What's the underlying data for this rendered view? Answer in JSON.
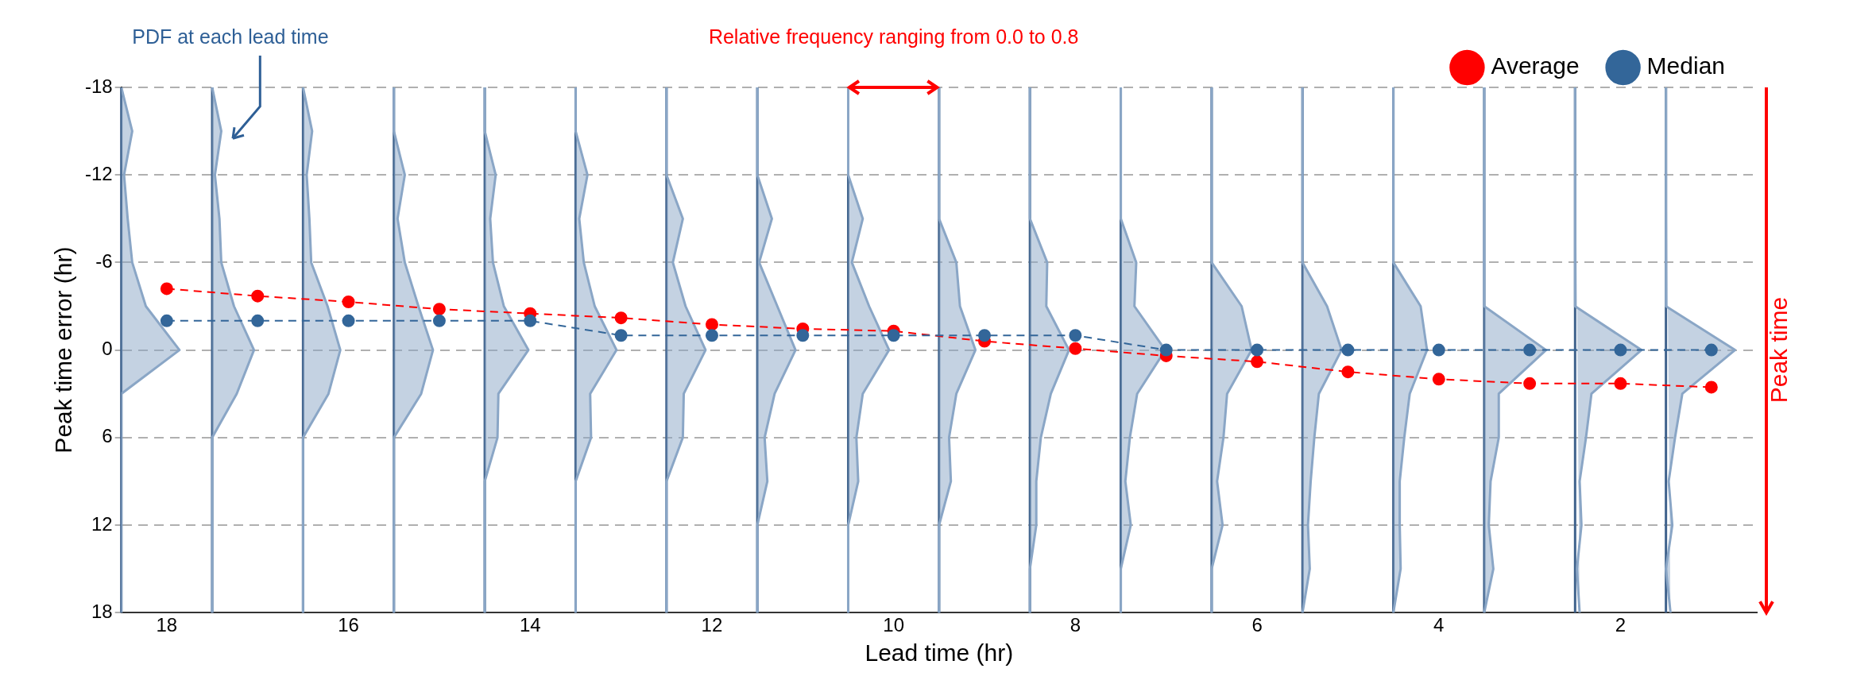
{
  "chart_data": {
    "type": "line",
    "xlabel": "Lead time (hr)",
    "ylabel": "Peak time error (hr)",
    "xlim": [
      18.5,
      0.5
    ],
    "xticks": [
      18,
      16,
      14,
      12,
      10,
      8,
      6,
      4,
      2
    ],
    "ylim": [
      18,
      -18
    ],
    "yticks": [
      -18,
      -12,
      -6,
      0,
      6,
      12,
      18
    ],
    "grid": "y",
    "legend": "top right",
    "line_style": "dashed",
    "annotations": [
      "PDF at each lead time",
      "Relative frequency ranging from 0.0 to 0.8",
      "Peak time"
    ],
    "ref_lines": [
      {
        "axis": "x",
        "value": 18.5,
        "color": "#3f628c"
      },
      {
        "axis": "x",
        "value": 17.5,
        "color": "#3f628c"
      },
      {
        "axis": "x",
        "value": 16.5,
        "color": "#3f628c"
      },
      {
        "axis": "x",
        "value": 15.5,
        "color": "#3f628c"
      },
      {
        "axis": "x",
        "value": 14.5,
        "color": "#3f628c"
      },
      {
        "axis": "x",
        "value": 13.5,
        "color": "#3f628c"
      },
      {
        "axis": "x",
        "value": 12.5,
        "color": "#3f628c"
      },
      {
        "axis": "x",
        "value": 11.5,
        "color": "#3f628c"
      },
      {
        "axis": "x",
        "value": 10.5,
        "color": "#3f628c"
      },
      {
        "axis": "x",
        "value": 9.5,
        "color": "#3f628c"
      },
      {
        "axis": "x",
        "value": 8.5,
        "color": "#3f628c"
      },
      {
        "axis": "x",
        "value": 7.5,
        "color": "#3f628c"
      },
      {
        "axis": "x",
        "value": 6.5,
        "color": "#3f628c"
      },
      {
        "axis": "x",
        "value": 5.5,
        "color": "#3f628c"
      },
      {
        "axis": "x",
        "value": 4.5,
        "color": "#3f628c"
      },
      {
        "axis": "x",
        "value": 3.5,
        "color": "#3f628c"
      },
      {
        "axis": "x",
        "value": 2.5,
        "color": "#3f628c"
      },
      {
        "axis": "x",
        "value": 1.5,
        "color": "#3f628c"
      }
    ],
    "series": [
      {
        "type": "area",
        "color": "#8aa6c6",
        "x": [
          18.5,
          18.38,
          18.47,
          18.43,
          18.38,
          18.23,
          17.86,
          18.5,
          18.5,
          18.5,
          18.5,
          18.5,
          18.5
        ],
        "values": [
          -18,
          -15,
          -12,
          -9,
          -6,
          -3,
          0,
          3,
          6,
          9,
          12,
          15,
          18
        ]
      },
      {
        "type": "area",
        "color": "#8aa6c6",
        "x": [
          17.5,
          17.4,
          17.47,
          17.42,
          17.4,
          17.26,
          17.04,
          17.23,
          17.5,
          17.5,
          17.5,
          17.5,
          17.5
        ],
        "values": [
          -18,
          -15,
          -12,
          -9,
          -6,
          -3,
          0,
          3,
          6,
          9,
          12,
          15,
          18
        ]
      },
      {
        "type": "area",
        "color": "#8aa6c6",
        "x": [
          16.5,
          16.4,
          16.46,
          16.43,
          16.41,
          16.23,
          16.09,
          16.22,
          16.5,
          16.5,
          16.5,
          16.5,
          16.5
        ],
        "values": [
          -18,
          -15,
          -12,
          -9,
          -6,
          -3,
          0,
          3,
          6,
          9,
          12,
          15,
          18
        ]
      },
      {
        "type": "area",
        "color": "#8aa6c6",
        "x": [
          15.5,
          15.5,
          15.38,
          15.46,
          15.38,
          15.23,
          15.07,
          15.2,
          15.5,
          15.5,
          15.5,
          15.5,
          15.5
        ],
        "values": [
          -18,
          -15,
          -12,
          -9,
          -6,
          -3,
          0,
          3,
          6,
          9,
          12,
          15,
          18
        ]
      },
      {
        "type": "area",
        "color": "#8aa6c6",
        "x": [
          14.5,
          14.5,
          14.38,
          14.44,
          14.41,
          14.29,
          14.02,
          14.35,
          14.36,
          14.5,
          14.5,
          14.5,
          14.5
        ],
        "values": [
          -18,
          -15,
          -12,
          -9,
          -6,
          -3,
          0,
          3,
          6,
          9,
          12,
          15,
          18
        ]
      },
      {
        "type": "area",
        "color": "#8aa6c6",
        "x": [
          13.5,
          13.5,
          13.37,
          13.46,
          13.41,
          13.29,
          13.05,
          13.34,
          13.33,
          13.5,
          13.5,
          13.5,
          13.5
        ],
        "values": [
          -18,
          -15,
          -12,
          -9,
          -6,
          -3,
          0,
          3,
          6,
          9,
          12,
          15,
          18
        ]
      },
      {
        "type": "area",
        "color": "#8aa6c6",
        "x": [
          12.5,
          12.5,
          12.5,
          12.32,
          12.43,
          12.29,
          12.07,
          12.31,
          12.32,
          12.5,
          12.5,
          12.5,
          12.5
        ],
        "values": [
          -18,
          -15,
          -12,
          -9,
          -6,
          -3,
          0,
          3,
          6,
          9,
          12,
          15,
          18
        ]
      },
      {
        "type": "area",
        "color": "#8aa6c6",
        "x": [
          11.5,
          11.5,
          11.5,
          11.34,
          11.48,
          11.28,
          11.08,
          11.31,
          11.42,
          11.39,
          11.5,
          11.5,
          11.5
        ],
        "values": [
          -18,
          -15,
          -12,
          -9,
          -6,
          -3,
          0,
          3,
          6,
          9,
          12,
          15,
          18
        ]
      },
      {
        "type": "area",
        "color": "#8aa6c6",
        "x": [
          10.5,
          10.5,
          10.5,
          10.34,
          10.46,
          10.27,
          10.05,
          10.34,
          10.41,
          10.39,
          10.5,
          10.5,
          10.5
        ],
        "values": [
          -18,
          -15,
          -12,
          -9,
          -6,
          -3,
          0,
          3,
          6,
          9,
          12,
          15,
          18
        ]
      },
      {
        "type": "area",
        "color": "#8aa6c6",
        "x": [
          9.5,
          9.5,
          9.5,
          9.5,
          9.31,
          9.27,
          9.1,
          9.31,
          9.39,
          9.37,
          9.5,
          9.5,
          9.5
        ],
        "values": [
          -18,
          -15,
          -12,
          -9,
          -6,
          -3,
          0,
          3,
          6,
          9,
          12,
          15,
          18
        ]
      },
      {
        "type": "area",
        "color": "#8aa6c6",
        "x": [
          8.5,
          8.5,
          8.5,
          8.5,
          8.31,
          8.32,
          8.07,
          8.27,
          8.38,
          8.43,
          8.43,
          8.5,
          8.5
        ],
        "values": [
          -18,
          -15,
          -12,
          -9,
          -6,
          -3,
          0,
          3,
          6,
          9,
          12,
          15,
          18
        ]
      },
      {
        "type": "area",
        "color": "#8aa6c6",
        "x": [
          7.5,
          7.5,
          7.5,
          7.5,
          7.33,
          7.35,
          7.01,
          7.32,
          7.4,
          7.45,
          7.39,
          7.5,
          7.5
        ],
        "values": [
          -18,
          -15,
          -12,
          -9,
          -6,
          -3,
          0,
          3,
          6,
          9,
          12,
          15,
          18
        ]
      },
      {
        "type": "area",
        "color": "#8aa6c6",
        "x": [
          6.5,
          6.5,
          6.5,
          6.5,
          6.5,
          6.17,
          6.06,
          6.33,
          6.37,
          6.44,
          6.38,
          6.5,
          6.5
        ],
        "values": [
          -18,
          -15,
          -12,
          -9,
          -6,
          -3,
          0,
          3,
          6,
          9,
          12,
          15,
          18
        ]
      },
      {
        "type": "area",
        "color": "#8aa6c6",
        "x": [
          5.5,
          5.5,
          5.5,
          5.5,
          5.5,
          5.23,
          5.07,
          5.32,
          5.37,
          5.41,
          5.44,
          5.42,
          5.5
        ],
        "values": [
          -18,
          -15,
          -12,
          -9,
          -6,
          -3,
          0,
          3,
          6,
          9,
          12,
          15,
          18
        ]
      },
      {
        "type": "area",
        "color": "#8aa6c6",
        "x": [
          4.5,
          4.5,
          4.5,
          4.5,
          4.5,
          4.2,
          4.13,
          4.32,
          4.38,
          4.43,
          4.43,
          4.42,
          4.5
        ],
        "values": [
          -18,
          -15,
          -12,
          -9,
          -6,
          -3,
          0,
          3,
          6,
          9,
          12,
          15,
          18
        ]
      },
      {
        "type": "area",
        "color": "#8aa6c6",
        "x": [
          3.5,
          3.5,
          3.5,
          3.5,
          3.5,
          3.5,
          2.82,
          3.34,
          3.34,
          3.43,
          3.45,
          3.4,
          3.5
        ],
        "values": [
          -18,
          -15,
          -12,
          -9,
          -6,
          -3,
          0,
          3,
          6,
          9,
          12,
          15,
          18
        ]
      },
      {
        "type": "area",
        "color": "#8aa6c6",
        "x": [
          2.5,
          2.5,
          2.5,
          2.5,
          2.5,
          2.5,
          1.77,
          2.32,
          2.38,
          2.45,
          2.43,
          2.48,
          2.45
        ],
        "values": [
          -18,
          -15,
          -12,
          -9,
          -6,
          -3,
          0,
          3,
          6,
          9,
          12,
          15,
          18
        ]
      },
      {
        "type": "area",
        "color": "#8aa6c6",
        "x": [
          1.5,
          1.5,
          1.5,
          1.5,
          1.5,
          1.5,
          0.74,
          1.32,
          1.4,
          1.47,
          1.43,
          1.5,
          1.45
        ],
        "values": [
          -18,
          -15,
          -12,
          -9,
          -6,
          -3,
          0,
          3,
          6,
          9,
          12,
          15,
          18
        ]
      },
      {
        "type": "line",
        "name": "Average",
        "marker": "circle",
        "color": "#ff0000",
        "x": [
          18,
          17,
          16,
          15,
          14,
          13,
          12,
          11,
          10,
          9,
          8,
          7,
          6,
          5,
          4,
          3,
          2,
          1
        ],
        "values": [
          -4.2,
          -3.7,
          -3.3,
          -2.8,
          -2.5,
          -2.2,
          -1.75,
          -1.45,
          -1.3,
          -0.6,
          -0.1,
          0.4,
          0.8,
          1.5,
          2.0,
          2.3,
          2.3,
          2.55
        ]
      },
      {
        "name": "Median",
        "marker": "circle",
        "color": "#336699",
        "x": [
          18,
          17,
          16,
          15,
          14,
          13,
          12,
          11,
          10,
          9,
          8,
          7,
          6,
          5,
          4,
          3,
          2,
          1
        ],
        "values": [
          -2,
          -2,
          -2,
          -2,
          -2,
          -1,
          -1,
          -1,
          -1,
          -1,
          -1,
          0,
          0,
          0,
          0,
          0,
          0,
          0
        ]
      }
    ]
  }
}
